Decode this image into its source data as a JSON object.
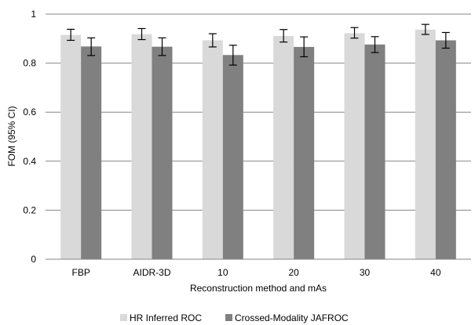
{
  "chart_data": {
    "type": "bar",
    "categories": [
      "FBP",
      "AIDR-3D",
      "10",
      "20",
      "30",
      "40"
    ],
    "series": [
      {
        "name": "HR Inferred ROC",
        "color": "#d9d9d9",
        "values": [
          0.915,
          0.918,
          0.893,
          0.911,
          0.922,
          0.937
        ],
        "ci_low": [
          0.893,
          0.896,
          0.866,
          0.886,
          0.902,
          0.917
        ],
        "ci_high": [
          0.938,
          0.941,
          0.92,
          0.937,
          0.945,
          0.958
        ]
      },
      {
        "name": "Crossed-Modality JAFROC",
        "color": "#808080",
        "values": [
          0.868,
          0.867,
          0.833,
          0.866,
          0.876,
          0.893
        ],
        "ci_low": [
          0.831,
          0.831,
          0.792,
          0.826,
          0.843,
          0.861
        ],
        "ci_high": [
          0.903,
          0.903,
          0.873,
          0.907,
          0.908,
          0.925
        ]
      }
    ],
    "xlabel": "Reconstruction method and mAs",
    "ylabel": "FOM (95% CI)",
    "ylim": [
      0,
      1
    ],
    "yticks": [
      "0",
      "0.2",
      "0.4",
      "0.6",
      "0.8",
      "1"
    ],
    "grid": true,
    "legend_position": "bottom"
  }
}
